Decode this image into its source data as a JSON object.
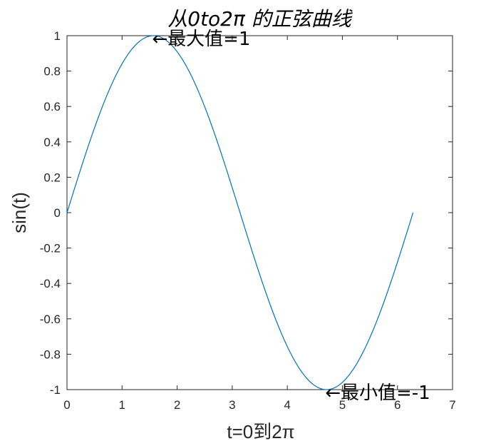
{
  "chart_data": {
    "type": "line",
    "title": "从0to2π 的正弦曲线",
    "xlabel": "t=0到2π",
    "ylabel": "sin(t)",
    "xlim": [
      0,
      7
    ],
    "ylim": [
      -1,
      1
    ],
    "x_ticks": [
      "0",
      "1",
      "2",
      "3",
      "4",
      "5",
      "6",
      "7"
    ],
    "y_ticks": [
      "-1",
      "-0.8",
      "-0.6",
      "-0.4",
      "-0.2",
      "0",
      "0.2",
      "0.4",
      "0.6",
      "0.8",
      "1"
    ],
    "grid": false,
    "series": [
      {
        "function": "sin(t)",
        "x_range": [
          0,
          6.2832
        ],
        "color": "#0072BD"
      }
    ],
    "annotations": [
      {
        "text": "←最大值=1",
        "x": 1.5708,
        "y": 1
      },
      {
        "text": "←最小值=-1",
        "x": 4.7124,
        "y": -1
      }
    ]
  }
}
